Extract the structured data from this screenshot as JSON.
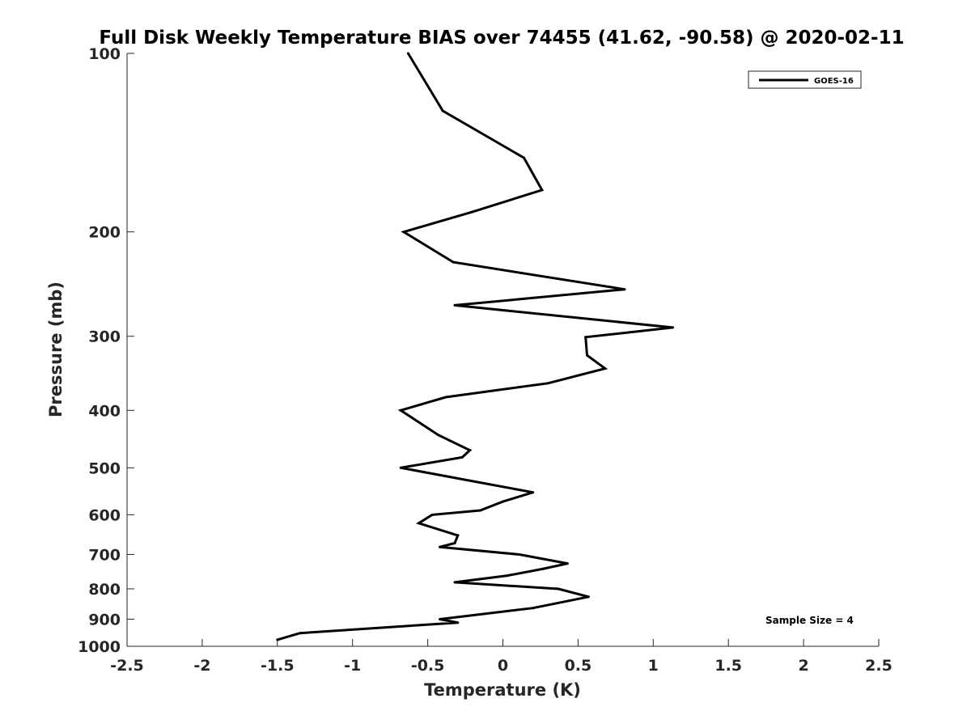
{
  "chart_data": {
    "type": "line",
    "title": "Full Disk Weekly Temperature BIAS over 74455 (41.62, -90.58) @ 2020-02-11",
    "xlabel": "Temperature (K)",
    "ylabel": "Pressure (mb)",
    "xlim": [
      -2.5,
      2.5
    ],
    "ylim": [
      100,
      1000
    ],
    "y_scale": "log",
    "y_reversed": true,
    "grid": false,
    "legend_position": "top-right",
    "x_ticks": [
      -2.5,
      -2,
      -1.5,
      -1,
      -0.5,
      0,
      0.5,
      1,
      1.5,
      2,
      2.5
    ],
    "x_tick_labels": [
      "-2.5",
      "-2",
      "-1.5",
      "-1",
      "-0.5",
      "0",
      "0.5",
      "1",
      "1.5",
      "2",
      "2.5"
    ],
    "y_ticks": [
      100,
      200,
      300,
      400,
      500,
      600,
      700,
      800,
      900,
      1000
    ],
    "y_tick_labels": [
      "100",
      "200",
      "300",
      "400",
      "500",
      "600",
      "700",
      "800",
      "900",
      "1000"
    ],
    "series": [
      {
        "name": "GOES-16",
        "color": "#000000",
        "points": [
          {
            "x": -0.63,
            "y": 100
          },
          {
            "x": -0.4,
            "y": 125
          },
          {
            "x": 0.14,
            "y": 150
          },
          {
            "x": 0.26,
            "y": 170
          },
          {
            "x": -0.2,
            "y": 185
          },
          {
            "x": -0.66,
            "y": 200
          },
          {
            "x": -0.33,
            "y": 225
          },
          {
            "x": 0.81,
            "y": 250
          },
          {
            "x": -0.32,
            "y": 266
          },
          {
            "x": 1.13,
            "y": 290
          },
          {
            "x": 0.55,
            "y": 301
          },
          {
            "x": 0.56,
            "y": 323
          },
          {
            "x": 0.68,
            "y": 340
          },
          {
            "x": 0.3,
            "y": 360
          },
          {
            "x": -0.38,
            "y": 380
          },
          {
            "x": -0.68,
            "y": 400
          },
          {
            "x": -0.43,
            "y": 440
          },
          {
            "x": -0.22,
            "y": 467
          },
          {
            "x": -0.27,
            "y": 480
          },
          {
            "x": -0.68,
            "y": 500
          },
          {
            "x": 0.2,
            "y": 550
          },
          {
            "x": 0.0,
            "y": 570
          },
          {
            "x": -0.15,
            "y": 590
          },
          {
            "x": -0.47,
            "y": 600
          },
          {
            "x": -0.56,
            "y": 620
          },
          {
            "x": -0.3,
            "y": 650
          },
          {
            "x": -0.32,
            "y": 670
          },
          {
            "x": -0.42,
            "y": 680
          },
          {
            "x": 0.11,
            "y": 700
          },
          {
            "x": 0.43,
            "y": 725
          },
          {
            "x": 0.27,
            "y": 740
          },
          {
            "x": 0.03,
            "y": 760
          },
          {
            "x": -0.32,
            "y": 780
          },
          {
            "x": 0.37,
            "y": 800
          },
          {
            "x": 0.57,
            "y": 825
          },
          {
            "x": 0.2,
            "y": 862
          },
          {
            "x": -0.42,
            "y": 900
          },
          {
            "x": -0.3,
            "y": 912
          },
          {
            "x": -1.35,
            "y": 950
          },
          {
            "x": -1.5,
            "y": 975
          }
        ]
      }
    ],
    "annotations": [
      "Sample Size = 4"
    ]
  }
}
